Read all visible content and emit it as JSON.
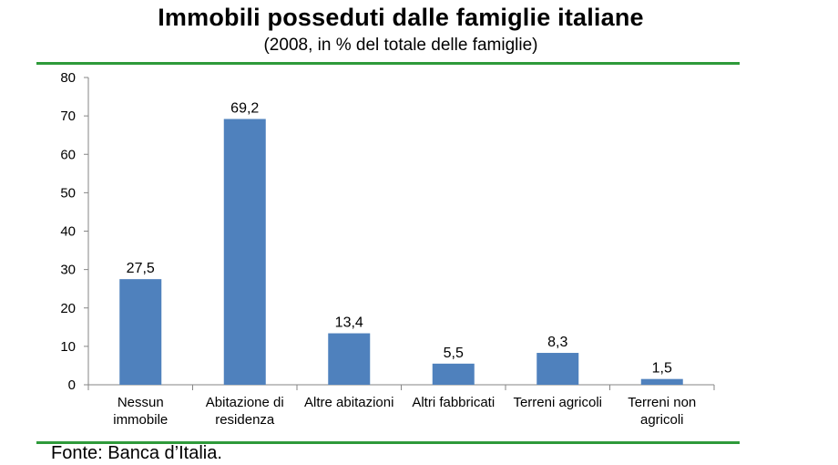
{
  "header": {
    "title": "Immobili posseduti dalle famiglie italiane",
    "subtitle": "(2008, in % del totale delle famiglie)"
  },
  "footer": {
    "source": "Fonte: Banca d’Italia."
  },
  "colors": {
    "bar": "#4f81bd",
    "rule": "#2e9a3a",
    "axis": "#868686"
  },
  "chart_data": {
    "type": "bar",
    "title": "Immobili posseduti dalle famiglie italiane",
    "subtitle": "(2008, in % del totale delle famiglie)",
    "categories": [
      [
        "Nessun",
        "immobile"
      ],
      [
        "Abitazione di",
        "residenza"
      ],
      [
        "Altre abitazioni"
      ],
      [
        "Altri fabbricati"
      ],
      [
        "Terreni agricoli"
      ],
      [
        "Terreni non",
        "agricoli"
      ]
    ],
    "values": [
      27.5,
      69.2,
      13.4,
      5.5,
      8.3,
      1.5
    ],
    "value_labels": [
      "27,5",
      "69,2",
      "13,4",
      "5,5",
      "8,3",
      "1,5"
    ],
    "y_ticks": [
      0,
      10,
      20,
      30,
      40,
      50,
      60,
      70,
      80
    ],
    "ylim": [
      0,
      80
    ],
    "grid": false,
    "legend": "none"
  }
}
